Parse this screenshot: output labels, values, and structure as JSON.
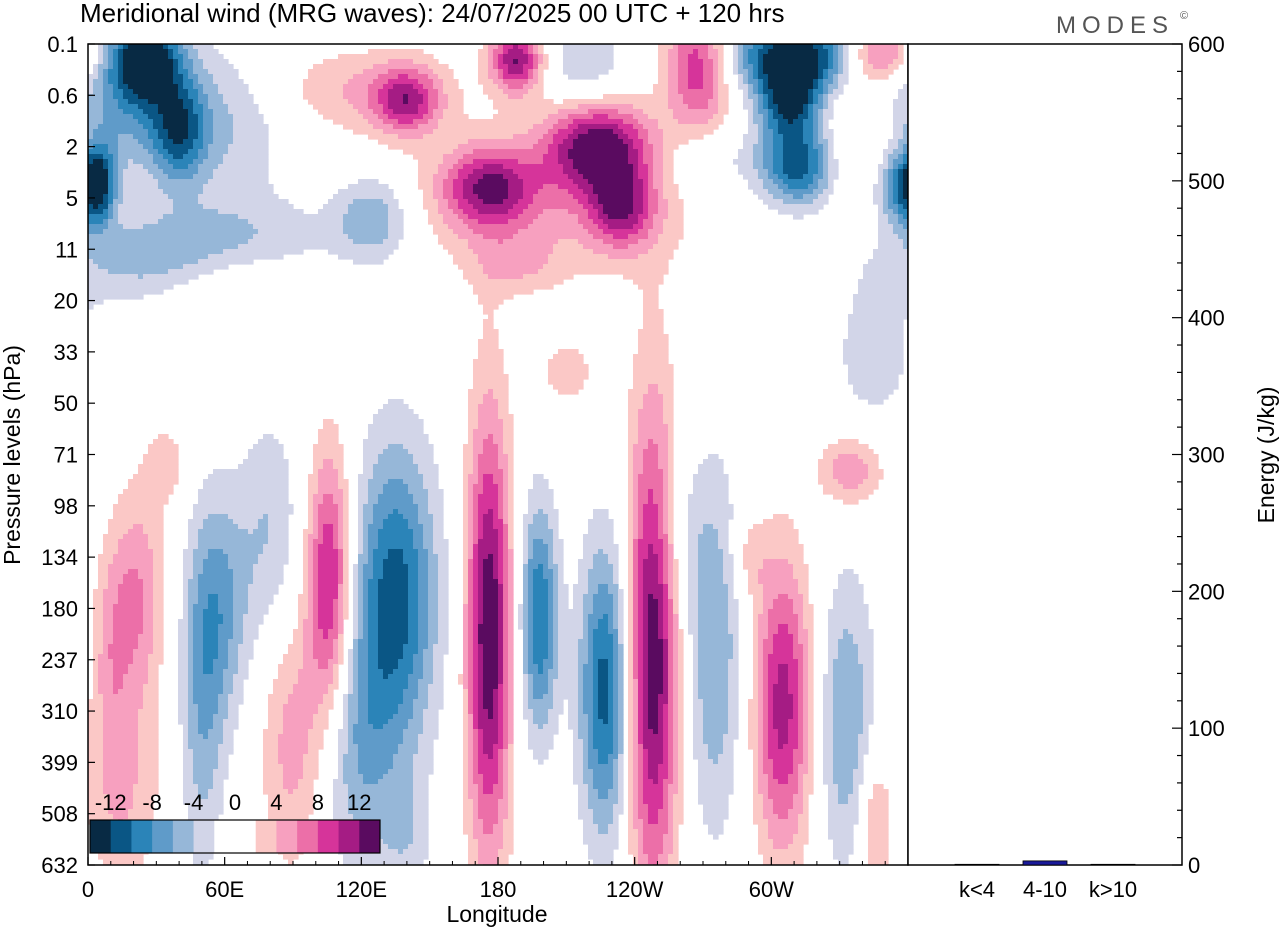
{
  "chart_data": {
    "type": "heatmap",
    "title": "Meridional wind (MRG waves):  24/07/2025  00 UTC  + 120 hrs",
    "brand": "MODES",
    "brand_mark": "©",
    "xlabel": "Longitude",
    "ylabel": "Pressure levels (hPa)",
    "x_ticks": [
      {
        "lon": 0,
        "label": "0"
      },
      {
        "lon": 60,
        "label": "60E"
      },
      {
        "lon": 120,
        "label": "120E"
      },
      {
        "lon": 180,
        "label": "180"
      },
      {
        "lon": 240,
        "label": "120W"
      },
      {
        "lon": 300,
        "label": "60W"
      }
    ],
    "xlim": [
      0,
      360
    ],
    "y_levels": [
      "0.1",
      "0.6",
      "2",
      "5",
      "11",
      "20",
      "33",
      "50",
      "71",
      "98",
      "134",
      "180",
      "237",
      "310",
      "399",
      "508",
      "632"
    ],
    "colorbar": {
      "ticks": [
        "-12",
        "-8",
        "-4",
        "0",
        "4",
        "8",
        "12"
      ],
      "colors": [
        "#082a44",
        "#0a5685",
        "#2b84b8",
        "#5f9bc9",
        "#96b7d8",
        "#d2d5e8",
        "#ffffff",
        "#ffffff",
        "#fbc8c6",
        "#f7a0bf",
        "#ec6fa8",
        "#d6349a",
        "#a51c84",
        "#5a0b60"
      ],
      "range": [
        -14,
        14
      ]
    },
    "anomalies": [
      {
        "lon": 25,
        "lev": 0.3,
        "v": -12,
        "sx": 10,
        "sy": 0.5
      },
      {
        "lon": 20,
        "lev": 1.0,
        "v": -7,
        "sx": 18,
        "sy": 1.0
      },
      {
        "lon": 40,
        "lev": 1.7,
        "v": -8,
        "sx": 8,
        "sy": 0.7
      },
      {
        "lon": 5,
        "lev": 2.7,
        "v": -8,
        "sx": 5,
        "sy": 0.6
      },
      {
        "lon": 72,
        "lev": 3.7,
        "v": -3,
        "sx": 30,
        "sy": 0.6
      },
      {
        "lon": 125,
        "lev": 3.4,
        "v": -6,
        "sx": 12,
        "sy": 0.6
      },
      {
        "lon": 60,
        "lev": 1.6,
        "v": -4,
        "sx": 20,
        "sy": 1.0
      },
      {
        "lon": 140,
        "lev": 1.1,
        "v": 9,
        "sx": 10,
        "sy": 0.45
      },
      {
        "lon": 120,
        "lev": 0.9,
        "v": 4,
        "sx": 28,
        "sy": 0.6
      },
      {
        "lon": 188,
        "lev": 0.3,
        "v": 12,
        "sx": 8,
        "sy": 0.45
      },
      {
        "lon": 176,
        "lev": 2.8,
        "v": 10,
        "sx": 14,
        "sy": 0.55
      },
      {
        "lon": 224,
        "lev": 2.0,
        "v": 13,
        "sx": 16,
        "sy": 0.6
      },
      {
        "lon": 234,
        "lev": 3.2,
        "v": 9,
        "sx": 10,
        "sy": 0.55
      },
      {
        "lon": 205,
        "lev": 3.1,
        "v": 4,
        "sx": 48,
        "sy": 1.0
      },
      {
        "lon": 268,
        "lev": 0.4,
        "v": 10,
        "sx": 10,
        "sy": 0.9
      },
      {
        "lon": 218,
        "lev": 0.4,
        "v": -4,
        "sx": 12,
        "sy": 0.6
      },
      {
        "lon": 312,
        "lev": 0.2,
        "v": -13,
        "sx": 22,
        "sy": 0.5
      },
      {
        "lon": 347,
        "lev": 0.2,
        "v": 10,
        "sx": 12,
        "sy": 0.4
      },
      {
        "lon": 308,
        "lev": 1.1,
        "v": -12,
        "sx": 10,
        "sy": 0.55
      },
      {
        "lon": 312,
        "lev": 2.4,
        "v": -11,
        "sx": 12,
        "sy": 0.55
      },
      {
        "lon": 358,
        "lev": 2.8,
        "v": -9,
        "sx": 8,
        "sy": 0.5
      },
      {
        "lon": 335,
        "lev": 2.0,
        "v": 3,
        "sx": 10,
        "sy": 1.0
      },
      {
        "lon": 272,
        "lev": 2.3,
        "v": -3,
        "sx": 16,
        "sy": 0.5
      },
      {
        "lon": 30,
        "lev": 4.2,
        "v": -5,
        "sx": 28,
        "sy": 0.6
      },
      {
        "lon": 60,
        "lev": 4.7,
        "v": 3,
        "sx": 20,
        "sy": 0.5
      },
      {
        "lon": 188,
        "lev": 4.3,
        "v": 3,
        "sx": 14,
        "sy": 0.4
      },
      {
        "lon": 345,
        "lev": 6.0,
        "v": -3,
        "sx": 14,
        "sy": 1.2
      },
      {
        "lon": 210,
        "lev": 6.4,
        "v": 3,
        "sx": 10,
        "sy": 0.5
      },
      {
        "lon": 335,
        "lev": 8.3,
        "v": 6,
        "sx": 10,
        "sy": 0.5
      },
      {
        "lon": 106,
        "lev": 10.5,
        "v": 11,
        "sx": 7,
        "sy": 1.8
      },
      {
        "lon": 135,
        "lev": 10.8,
        "v": -11,
        "sx": 13,
        "sy": 2.1
      },
      {
        "lon": 176,
        "lev": 11.5,
        "v": 14,
        "sx": 7,
        "sy": 3.0
      },
      {
        "lon": 198,
        "lev": 11.2,
        "v": -10,
        "sx": 6,
        "sy": 1.6
      },
      {
        "lon": 227,
        "lev": 12.6,
        "v": -11,
        "sx": 8,
        "sy": 2.0
      },
      {
        "lon": 248,
        "lev": 11.8,
        "v": 14,
        "sx": 8,
        "sy": 3.3
      },
      {
        "lon": 275,
        "lev": 11.8,
        "v": -6,
        "sx": 9,
        "sy": 2.5
      },
      {
        "lon": 305,
        "lev": 12.9,
        "v": 11,
        "sx": 9,
        "sy": 2.0
      },
      {
        "lon": 333,
        "lev": 13.2,
        "v": -6,
        "sx": 9,
        "sy": 2.0
      },
      {
        "lon": 58,
        "lev": 11.0,
        "v": -6,
        "sx": 9,
        "sy": 1.6
      },
      {
        "lon": 22,
        "lev": 10.8,
        "v": 6,
        "sx": 8,
        "sy": 1.5
      },
      {
        "lon": 10,
        "lev": 11.8,
        "v": 4,
        "sx": 6,
        "sy": 1.5
      },
      {
        "lon": 35,
        "lev": 8.2,
        "v": 3,
        "sx": 7,
        "sy": 0.6
      },
      {
        "lon": 80,
        "lev": 9.5,
        "v": -4,
        "sx": 10,
        "sy": 1.6
      },
      {
        "lon": 50,
        "lev": 13.0,
        "v": -5,
        "sx": 7,
        "sy": 2.3
      },
      {
        "lon": 15,
        "lev": 14.6,
        "v": 4,
        "sx": 12,
        "sy": 1.4
      },
      {
        "lon": 118,
        "lev": 13.8,
        "v": -5,
        "sx": 12,
        "sy": 1.8
      },
      {
        "lon": 90,
        "lev": 13.6,
        "v": 5,
        "sx": 10,
        "sy": 1.8
      },
      {
        "lon": 140,
        "lev": 15.4,
        "v": -3,
        "sx": 8,
        "sy": 0.8
      },
      {
        "lon": 345,
        "lev": 15.4,
        "v": 5,
        "sx": 5,
        "sy": 1.2
      },
      {
        "lon": 258,
        "lev": 9.6,
        "v": -3,
        "sx": 8,
        "sy": 1.2
      },
      {
        "lon": 290,
        "lev": 10.0,
        "v": 3,
        "sx": 6,
        "sy": 0.6
      }
    ],
    "energy": {
      "ylabel": "Energy (J/kg)",
      "ylim": [
        0,
        600
      ],
      "y_ticks": [
        "0",
        "100",
        "200",
        "300",
        "400",
        "500",
        "600"
      ],
      "categories": [
        "k<4",
        "4-10",
        "k>10"
      ],
      "values": [
        0.5,
        3,
        0.5
      ],
      "bar_colors": [
        "#333366",
        "#1a1a9a",
        "#333366"
      ]
    }
  }
}
